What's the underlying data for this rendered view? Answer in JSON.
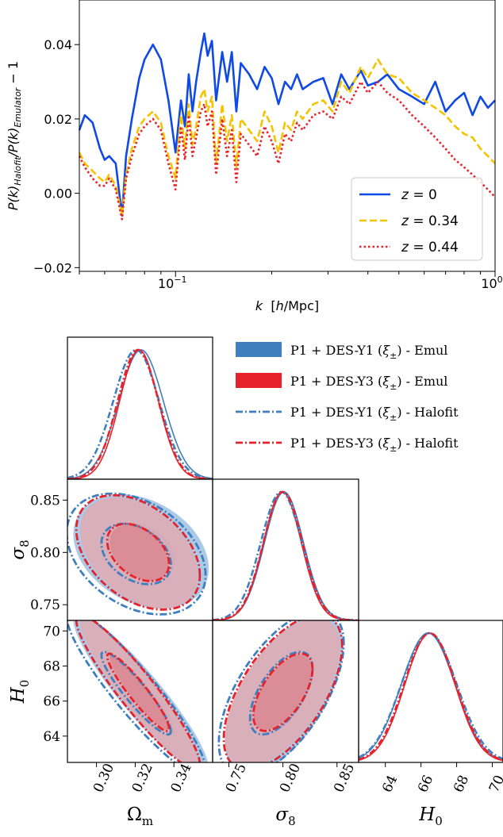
{
  "chart_data": [
    {
      "type": "line",
      "title": "",
      "xlabel": "k  [h/Mpc]",
      "ylabel": "P(k)Halofit/P(k)Emulator − 1",
      "ylabel_parts": {
        "a": "P(k)",
        "b": "Halofit",
        "c": "/P(k)",
        "d": "Emulator",
        "e": " − 1"
      },
      "xlabel_parts": {
        "a": "k",
        "b": "  [",
        "c": "h",
        "d": "/Mpc]"
      },
      "x_scale": "log",
      "xlim": [
        0.05,
        1.0
      ],
      "ylim": [
        -0.021,
        0.052
      ],
      "xticks": [
        {
          "v": 0.1,
          "base": "10",
          "exp": "−1"
        },
        {
          "v": 1.0,
          "base": "10",
          "exp": "0"
        }
      ],
      "yticks": [
        {
          "v": 0.04,
          "label": "0.04"
        },
        {
          "v": 0.02,
          "label": "0.02"
        },
        {
          "v": 0.0,
          "label": "0.00"
        },
        {
          "v": -0.02,
          "label": "−0.02"
        }
      ],
      "legend_position": "lower-right",
      "series": [
        {
          "name": "z = 0",
          "key": "z0",
          "label_parts": {
            "z": "z",
            "eq": " = 0"
          },
          "color": "#0f49e6",
          "dash": "solid",
          "x": [
            0.05,
            0.052,
            0.055,
            0.058,
            0.06,
            0.062,
            0.065,
            0.068,
            0.07,
            0.073,
            0.077,
            0.08,
            0.085,
            0.09,
            0.095,
            0.1,
            0.104,
            0.107,
            0.11,
            0.113,
            0.116,
            0.12,
            0.123,
            0.126,
            0.13,
            0.134,
            0.14,
            0.145,
            0.15,
            0.155,
            0.16,
            0.17,
            0.18,
            0.19,
            0.2,
            0.21,
            0.22,
            0.23,
            0.24,
            0.25,
            0.27,
            0.29,
            0.31,
            0.33,
            0.35,
            0.38,
            0.4,
            0.43,
            0.46,
            0.5,
            0.55,
            0.6,
            0.65,
            0.7,
            0.75,
            0.8,
            0.85,
            0.9,
            0.95,
            1.0
          ],
          "y": [
            0.017,
            0.021,
            0.019,
            0.012,
            0.009,
            0.01,
            0.008,
            -0.006,
            0.01,
            0.02,
            0.031,
            0.036,
            0.04,
            0.036,
            0.025,
            0.011,
            0.025,
            0.018,
            0.032,
            0.022,
            0.03,
            0.038,
            0.043,
            0.037,
            0.041,
            0.025,
            0.038,
            0.03,
            0.038,
            0.022,
            0.035,
            0.032,
            0.028,
            0.034,
            0.031,
            0.024,
            0.03,
            0.028,
            0.032,
            0.028,
            0.03,
            0.031,
            0.024,
            0.032,
            0.028,
            0.033,
            0.029,
            0.03,
            0.032,
            0.028,
            0.026,
            0.024,
            0.03,
            0.022,
            0.025,
            0.027,
            0.021,
            0.026,
            0.023,
            0.025
          ]
        },
        {
          "name": "z = 0.34",
          "key": "z34",
          "label_parts": {
            "z": "z",
            "eq": " = 0.34"
          },
          "color": "#f5c400",
          "dash": "dashed",
          "x": [
            0.05,
            0.052,
            0.055,
            0.058,
            0.06,
            0.062,
            0.065,
            0.068,
            0.07,
            0.073,
            0.077,
            0.08,
            0.085,
            0.09,
            0.095,
            0.1,
            0.104,
            0.107,
            0.11,
            0.113,
            0.116,
            0.12,
            0.123,
            0.126,
            0.13,
            0.134,
            0.14,
            0.145,
            0.15,
            0.155,
            0.16,
            0.17,
            0.18,
            0.19,
            0.2,
            0.21,
            0.22,
            0.23,
            0.24,
            0.25,
            0.27,
            0.29,
            0.31,
            0.33,
            0.35,
            0.38,
            0.4,
            0.43,
            0.46,
            0.5,
            0.55,
            0.6,
            0.65,
            0.7,
            0.75,
            0.8,
            0.85,
            0.9,
            0.95,
            1.0
          ],
          "y": [
            0.011,
            0.008,
            0.006,
            0.004,
            0.003,
            0.005,
            0.002,
            -0.006,
            0.005,
            0.012,
            0.018,
            0.02,
            0.022,
            0.019,
            0.01,
            0.004,
            0.021,
            0.012,
            0.024,
            0.013,
            0.018,
            0.026,
            0.028,
            0.022,
            0.026,
            0.008,
            0.024,
            0.014,
            0.021,
            0.007,
            0.02,
            0.017,
            0.014,
            0.022,
            0.018,
            0.011,
            0.019,
            0.017,
            0.022,
            0.02,
            0.024,
            0.025,
            0.022,
            0.03,
            0.027,
            0.034,
            0.031,
            0.036,
            0.032,
            0.031,
            0.027,
            0.025,
            0.023,
            0.021,
            0.018,
            0.016,
            0.015,
            0.012,
            0.01,
            0.008
          ]
        },
        {
          "name": "z = 0.44",
          "key": "z44",
          "label_parts": {
            "z": "z",
            "eq": " = 0.44"
          },
          "color": "#e8222b",
          "dash": "dotted",
          "x": [
            0.05,
            0.052,
            0.055,
            0.058,
            0.06,
            0.062,
            0.065,
            0.068,
            0.07,
            0.073,
            0.077,
            0.08,
            0.085,
            0.09,
            0.095,
            0.1,
            0.104,
            0.107,
            0.11,
            0.113,
            0.116,
            0.12,
            0.123,
            0.126,
            0.13,
            0.134,
            0.14,
            0.145,
            0.15,
            0.155,
            0.16,
            0.17,
            0.18,
            0.19,
            0.2,
            0.21,
            0.22,
            0.23,
            0.24,
            0.25,
            0.27,
            0.29,
            0.31,
            0.33,
            0.35,
            0.38,
            0.4,
            0.43,
            0.46,
            0.5,
            0.55,
            0.6,
            0.65,
            0.7,
            0.75,
            0.8,
            0.85,
            0.9,
            0.95,
            1.0
          ],
          "y": [
            0.01,
            0.007,
            0.004,
            0.002,
            0.002,
            0.004,
            0.001,
            -0.007,
            0.004,
            0.01,
            0.016,
            0.018,
            0.02,
            0.017,
            0.008,
            0.001,
            0.018,
            0.009,
            0.021,
            0.01,
            0.015,
            0.022,
            0.024,
            0.018,
            0.022,
            0.005,
            0.02,
            0.01,
            0.017,
            0.003,
            0.016,
            0.013,
            0.01,
            0.018,
            0.014,
            0.008,
            0.016,
            0.014,
            0.019,
            0.017,
            0.021,
            0.022,
            0.02,
            0.026,
            0.024,
            0.03,
            0.027,
            0.03,
            0.027,
            0.025,
            0.021,
            0.018,
            0.015,
            0.012,
            0.009,
            0.007,
            0.005,
            0.003,
            0.001,
            -0.001
          ]
        }
      ]
    },
    {
      "type": "triangle-plot",
      "parameters": [
        {
          "key": "omega",
          "symbol": "Ω",
          "sub": "m",
          "lim": [
            0.285,
            0.36
          ],
          "ticks": [
            "0.30",
            "0.32",
            "0.34"
          ],
          "tick_values": [
            0.3,
            0.32,
            0.34
          ]
        },
        {
          "key": "sigma",
          "symbol": "σ",
          "sub": "8",
          "lim": [
            0.735,
            0.87
          ],
          "ticks": [
            "0.75",
            "0.80",
            "0.85"
          ],
          "tick_values": [
            0.75,
            0.8,
            0.85
          ]
        },
        {
          "key": "h0",
          "symbol": "H",
          "sub": "0",
          "lim": [
            62.5,
            70.6
          ],
          "ticks": [
            "64",
            "66",
            "68",
            "70"
          ],
          "tick_values": [
            64,
            66,
            68,
            70
          ]
        }
      ],
      "legend_position": "top-right",
      "legend": [
        {
          "key": "e1",
          "label_pre": "P1 + DES-Y1 (",
          "label_math": "ξ",
          "label_sub": "±",
          "label_post": ") - Emul",
          "color": "#3f7fbf",
          "style": "filled"
        },
        {
          "key": "e3",
          "label_pre": "P1 + DES-Y3 (",
          "label_math": "ξ",
          "label_sub": "±",
          "label_post": ") - Emul",
          "color": "#e8222b",
          "style": "filled"
        },
        {
          "key": "h1",
          "label_pre": "P1 + DES-Y1 (",
          "label_math": "ξ",
          "label_sub": "±",
          "label_post": ") - Halofit",
          "color": "#3f7fbf",
          "style": "dash-dot"
        },
        {
          "key": "h3",
          "label_pre": "P1 + DES-Y3 (",
          "label_math": "ξ",
          "label_sub": "±",
          "label_post": ") - Halofit",
          "color": "#e8222b",
          "style": "dash-dot"
        }
      ],
      "marginals": {
        "omega": {
          "e1": [
            0.323,
            0.0115
          ],
          "e3": [
            0.322,
            0.01
          ],
          "h1": [
            0.3205,
            0.0118
          ],
          "h3": [
            0.3215,
            0.0105
          ]
        },
        "sigma": {
          "e1": [
            0.801,
            0.018
          ],
          "e3": [
            0.7995,
            0.0175
          ],
          "h1": [
            0.7985,
            0.019
          ],
          "h3": [
            0.8,
            0.018
          ]
        },
        "h0": {
          "e1": [
            66.4,
            1.5
          ],
          "e3": [
            66.5,
            1.4
          ],
          "h1": [
            66.45,
            1.55
          ],
          "h3": [
            66.5,
            1.45
          ]
        }
      },
      "contours": {
        "omega_sigma": {
          "e1": [
            [
              0.323,
              0.801,
              0.0115,
              0.018,
              -0.3
            ],
            [
              0.323,
              0.801,
              0.023,
              0.036,
              -0.3
            ]
          ],
          "e3": [
            [
              0.322,
              0.7995,
              0.01,
              0.0175,
              -0.4
            ],
            [
              0.322,
              0.7995,
              0.02,
              0.035,
              -0.4
            ]
          ],
          "h1": [
            [
              0.3205,
              0.7985,
              0.0118,
              0.019,
              -0.35
            ],
            [
              0.3205,
              0.7985,
              0.0236,
              0.038,
              -0.35
            ]
          ],
          "h3": [
            [
              0.3215,
              0.8,
              0.0105,
              0.018,
              -0.4
            ],
            [
              0.3215,
              0.8,
              0.021,
              0.036,
              -0.4
            ]
          ]
        },
        "omega_h0": {
          "e1": [
            [
              0.323,
              66.4,
              0.0115,
              1.5,
              -0.92
            ],
            [
              0.323,
              66.4,
              0.023,
              3.0,
              -0.92
            ]
          ],
          "e3": [
            [
              0.322,
              66.5,
              0.01,
              1.4,
              -0.93
            ],
            [
              0.322,
              66.5,
              0.02,
              2.8,
              -0.93
            ]
          ],
          "h1": [
            [
              0.3205,
              66.45,
              0.0118,
              1.55,
              -0.92
            ],
            [
              0.3205,
              66.45,
              0.0236,
              3.1,
              -0.92
            ]
          ],
          "h3": [
            [
              0.3215,
              66.5,
              0.0105,
              1.45,
              -0.93
            ],
            [
              0.3215,
              66.5,
              0.021,
              2.9,
              -0.93
            ]
          ]
        },
        "sigma_h0": {
          "e1": [
            [
              0.801,
              66.4,
              0.018,
              1.5,
              0.6
            ],
            [
              0.801,
              66.4,
              0.036,
              3.0,
              0.6
            ]
          ],
          "e3": [
            [
              0.7995,
              66.5,
              0.0175,
              1.4,
              0.6
            ],
            [
              0.7995,
              66.5,
              0.035,
              2.8,
              0.6
            ]
          ],
          "h1": [
            [
              0.7985,
              66.45,
              0.019,
              1.55,
              0.6
            ],
            [
              0.7985,
              66.45,
              0.038,
              3.1,
              0.6
            ]
          ],
          "h3": [
            [
              0.8,
              66.5,
              0.018,
              1.45,
              0.6
            ],
            [
              0.8,
              66.5,
              0.036,
              2.9,
              0.6
            ]
          ]
        }
      }
    }
  ]
}
